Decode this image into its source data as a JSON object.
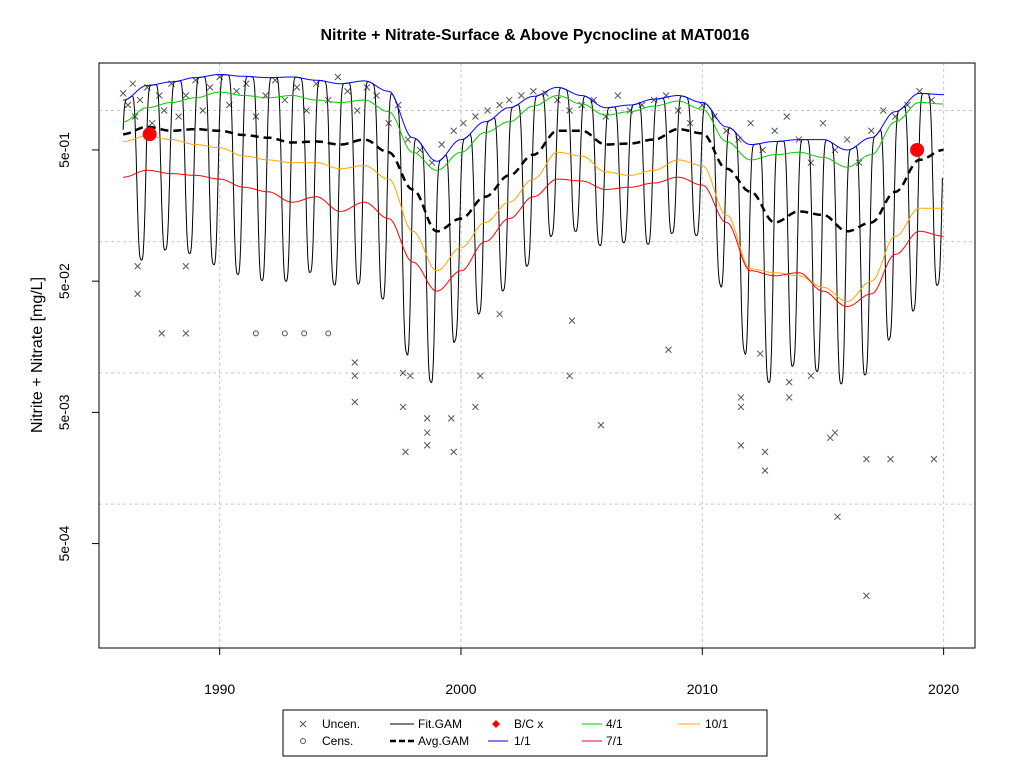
{
  "chart_data": {
    "type": "line",
    "title": "Nitrite + Nitrate-Surface & Above Pycnocline at MAT0016",
    "xlabel": "",
    "ylabel": "Nitrite + Nitrate [mg/L]",
    "yscale": "log",
    "xlim": [
      1985,
      2021.3
    ],
    "ylim": [
      8e-05,
      2.3
    ],
    "grid": true,
    "x_ticks": [
      1990,
      2000,
      2010,
      2020
    ],
    "y_ticks": [
      0.5,
      0.05,
      0.005,
      0.0005
    ],
    "y_tick_labels": [
      "5e-01",
      "5e-02",
      "5e-03",
      "5e-04"
    ],
    "y_grid_values": [
      1,
      0.1,
      0.01,
      0.001
    ],
    "series": [
      {
        "name": "Avg.GAM",
        "color": "#000000",
        "style": "dashed",
        "x": [
          1986,
          1987,
          1988,
          1989,
          1990,
          1991,
          1992,
          1993,
          1994,
          1995,
          1996,
          1997,
          1998,
          1999,
          2000,
          2001,
          2002,
          2003,
          2004,
          2005,
          2006,
          2007,
          2008,
          2009,
          2010,
          2011,
          2012,
          2013,
          2014,
          2015,
          2016,
          2017,
          2018,
          2019,
          2020
        ],
        "values": [
          0.66,
          0.75,
          0.7,
          0.72,
          0.7,
          0.65,
          0.62,
          0.57,
          0.58,
          0.55,
          0.6,
          0.48,
          0.25,
          0.12,
          0.15,
          0.22,
          0.32,
          0.46,
          0.7,
          0.7,
          0.55,
          0.56,
          0.6,
          0.72,
          0.67,
          0.36,
          0.24,
          0.14,
          0.17,
          0.16,
          0.12,
          0.14,
          0.24,
          0.42,
          0.5
        ]
      },
      {
        "name": "1/1",
        "color": "#0000ff",
        "style": "solid",
        "x": [
          1986,
          1987,
          1988,
          1989,
          1990,
          1991,
          1992,
          1993,
          1994,
          1995,
          1996,
          1997,
          1998,
          1999,
          2000,
          2001,
          2002,
          2003,
          2004,
          2005,
          2006,
          2007,
          2008,
          2009,
          2010,
          2011,
          2012,
          2013,
          2014,
          2015,
          2016,
          2017,
          2018,
          2019,
          2020
        ],
        "values": [
          1.2,
          1.55,
          1.65,
          1.78,
          1.88,
          1.82,
          1.78,
          1.8,
          1.7,
          1.6,
          1.68,
          1.4,
          0.62,
          0.41,
          0.6,
          0.82,
          1.05,
          1.28,
          1.5,
          1.3,
          1.05,
          1.1,
          1.22,
          1.3,
          1.15,
          0.75,
          0.55,
          0.58,
          0.6,
          0.6,
          0.5,
          0.62,
          0.98,
          1.35,
          1.32
        ]
      },
      {
        "name": "4/1",
        "color": "#00cc00",
        "style": "solid",
        "x": [
          1986,
          1987,
          1988,
          1989,
          1990,
          1991,
          1992,
          1993,
          1994,
          1995,
          1996,
          1997,
          1998,
          1999,
          2000,
          2001,
          2002,
          2003,
          2004,
          2005,
          2006,
          2007,
          2008,
          2009,
          2010,
          2011,
          2012,
          2013,
          2014,
          2015,
          2016,
          2017,
          2018,
          2019,
          2020
        ],
        "values": [
          0.82,
          1.05,
          1.15,
          1.25,
          1.38,
          1.3,
          1.25,
          1.3,
          1.2,
          1.15,
          1.2,
          0.98,
          0.48,
          0.35,
          0.48,
          0.68,
          0.82,
          1.08,
          1.3,
          1.12,
          0.92,
          0.98,
          1.08,
          1.18,
          1.02,
          0.58,
          0.42,
          0.46,
          0.48,
          0.44,
          0.37,
          0.46,
          0.82,
          1.15,
          1.12
        ]
      },
      {
        "name": "10/1",
        "color": "#ffa500",
        "style": "solid",
        "x": [
          1986,
          1987,
          1988,
          1989,
          1990,
          1991,
          1992,
          1993,
          1994,
          1995,
          1996,
          1997,
          1998,
          1999,
          2000,
          2001,
          2002,
          2003,
          2004,
          2005,
          2006,
          2007,
          2008,
          2009,
          2010,
          2011,
          2012,
          2013,
          2014,
          2015,
          2016,
          2017,
          2018,
          2019,
          2020
        ],
        "values": [
          0.58,
          0.64,
          0.6,
          0.55,
          0.52,
          0.45,
          0.42,
          0.4,
          0.4,
          0.36,
          0.38,
          0.3,
          0.12,
          0.06,
          0.09,
          0.14,
          0.2,
          0.3,
          0.48,
          0.45,
          0.34,
          0.32,
          0.35,
          0.42,
          0.38,
          0.16,
          0.062,
          0.058,
          0.055,
          0.045,
          0.035,
          0.05,
          0.11,
          0.18,
          0.18
        ]
      },
      {
        "name": "7/1",
        "color": "#ff0000",
        "style": "solid",
        "x": [
          1986,
          1987,
          1988,
          1989,
          1990,
          1991,
          1992,
          1993,
          1994,
          1995,
          1996,
          1997,
          1998,
          1999,
          2000,
          2001,
          2002,
          2003,
          2004,
          2005,
          2006,
          2007,
          2008,
          2009,
          2010,
          2011,
          2012,
          2013,
          2014,
          2015,
          2016,
          2017,
          2018,
          2019,
          2020
        ],
        "values": [
          0.31,
          0.35,
          0.33,
          0.32,
          0.3,
          0.26,
          0.24,
          0.2,
          0.22,
          0.17,
          0.2,
          0.15,
          0.07,
          0.042,
          0.06,
          0.1,
          0.15,
          0.22,
          0.3,
          0.29,
          0.25,
          0.26,
          0.28,
          0.31,
          0.27,
          0.14,
          0.06,
          0.055,
          0.058,
          0.042,
          0.032,
          0.04,
          0.08,
          0.12,
          0.11
        ]
      }
    ],
    "fit_gam": {
      "name": "Fit.GAM",
      "color": "#000000",
      "seasonal_troughs": [
        0.09,
        0.07,
        0.09,
        0.08,
        0.065,
        0.055,
        0.05,
        0.05,
        0.06,
        0.045,
        0.048,
        0.035,
        0.012,
        0.008,
        0.02,
        0.03,
        0.045,
        0.07,
        0.12,
        0.12,
        0.09,
        0.1,
        0.095,
        0.12,
        0.11,
        0.04,
        0.012,
        0.008,
        0.012,
        0.01,
        0.008,
        0.01,
        0.02,
        0.032,
        0.05
      ]
    },
    "bc_points": {
      "name": "B/C x",
      "color": "#ff0000",
      "x": [
        1987.1,
        2018.9
      ],
      "y": [
        0.66,
        0.5
      ]
    },
    "uncensored_points": {
      "name": "Uncen.",
      "color": "#555555",
      "x": [
        1986.0,
        1986.2,
        1986.4,
        1986.5,
        1986.7,
        1987.0,
        1987.2,
        1987.5,
        1987.7,
        1988.0,
        1988.3,
        1988.6,
        1989.0,
        1989.3,
        1989.6,
        1990.0,
        1990.4,
        1990.7,
        1991.1,
        1991.5,
        1991.9,
        1992.3,
        1992.7,
        1993.2,
        1993.6,
        1994.0,
        1994.5,
        1994.9,
        1995.3,
        1995.7,
        1996.1,
        1996.5,
        1997.0,
        1997.4,
        1997.8,
        1998.3,
        1998.8,
        1999.2,
        1999.7,
        2000.1,
        2000.6,
        2001.1,
        2001.6,
        2002.0,
        2002.5,
        2003.0,
        2003.5,
        2004.0,
        2004.5,
        2005.0,
        2005.5,
        2006.0,
        2006.5,
        2007.0,
        2007.5,
        2008.0,
        2008.5,
        2009.0,
        2009.5,
        2010.0,
        2010.5,
        2011.0,
        2011.5,
        2012.0,
        2012.5,
        2013.0,
        2013.5,
        2014.0,
        2014.5,
        2015.0,
        2015.5,
        2016.0,
        2016.5,
        2017.0,
        2017.5,
        2018.0,
        2018.5,
        2019.0,
        2019.5,
        1986.6,
        1986.6,
        1987.6,
        1988.6,
        1988.6,
        1995.6,
        1995.6,
        1995.6,
        1997.6,
        1997.6,
        1997.7,
        1997.9,
        1998.6,
        1998.6,
        1998.6,
        1999.6,
        1999.7,
        2000.6,
        2000.8,
        2001.6,
        2004.5,
        2004.6,
        2005.8,
        2008.6,
        2011.6,
        2011.6,
        2011.6,
        2012.4,
        2012.6,
        2012.6,
        2013.6,
        2013.6,
        2014.5,
        2015.3,
        2015.5,
        2015.6,
        2016.8,
        2016.8,
        2017.8,
        2019.6
      ],
      "values": [
        1.35,
        1.1,
        1.6,
        0.9,
        1.2,
        1.5,
        0.8,
        1.3,
        1.0,
        1.6,
        0.9,
        1.3,
        1.7,
        1.0,
        1.5,
        1.8,
        1.1,
        1.4,
        1.6,
        0.9,
        1.3,
        1.7,
        1.2,
        1.5,
        1.0,
        1.6,
        1.2,
        1.8,
        1.4,
        1.0,
        1.5,
        1.3,
        0.8,
        1.1,
        0.6,
        0.5,
        0.4,
        0.55,
        0.7,
        0.8,
        0.9,
        1.0,
        1.1,
        1.2,
        1.3,
        1.4,
        1.35,
        1.2,
        1.0,
        1.1,
        1.2,
        0.9,
        1.3,
        1.0,
        1.1,
        1.2,
        1.3,
        1.0,
        0.8,
        1.1,
        0.9,
        0.7,
        0.6,
        0.8,
        0.5,
        0.7,
        0.9,
        0.6,
        0.4,
        0.8,
        0.5,
        0.6,
        0.4,
        0.7,
        1.0,
        0.9,
        1.1,
        1.4,
        1.2,
        0.065,
        0.04,
        0.02,
        0.02,
        0.065,
        0.012,
        0.0095,
        0.006,
        0.01,
        0.0055,
        0.0025,
        0.0095,
        0.0045,
        0.0035,
        0.0028,
        0.0045,
        0.0025,
        0.0055,
        0.0095,
        0.028,
        0.0095,
        0.025,
        0.004,
        0.015,
        0.0065,
        0.0055,
        0.0028,
        0.014,
        0.0025,
        0.0018,
        0.0085,
        0.0065,
        0.0095,
        0.0032,
        0.0035,
        0.0008,
        0.0002,
        0.0022,
        0.0022,
        0.0022
      ],
      "note": "representative sample of plotted x marks"
    },
    "censored_points": {
      "name": "Cens.",
      "color": "#555555",
      "x": [
        1991.5,
        1992.7,
        1993.5,
        1994.5
      ],
      "y": [
        0.02,
        0.02,
        0.02,
        0.02
      ]
    },
    "legend": {
      "position": "bottom-center",
      "entries": [
        "Uncen.",
        "Cens.",
        "Fit.GAM",
        "Avg.GAM",
        "B/C x",
        "1/1",
        "4/1",
        "7/1",
        "10/1"
      ]
    }
  }
}
